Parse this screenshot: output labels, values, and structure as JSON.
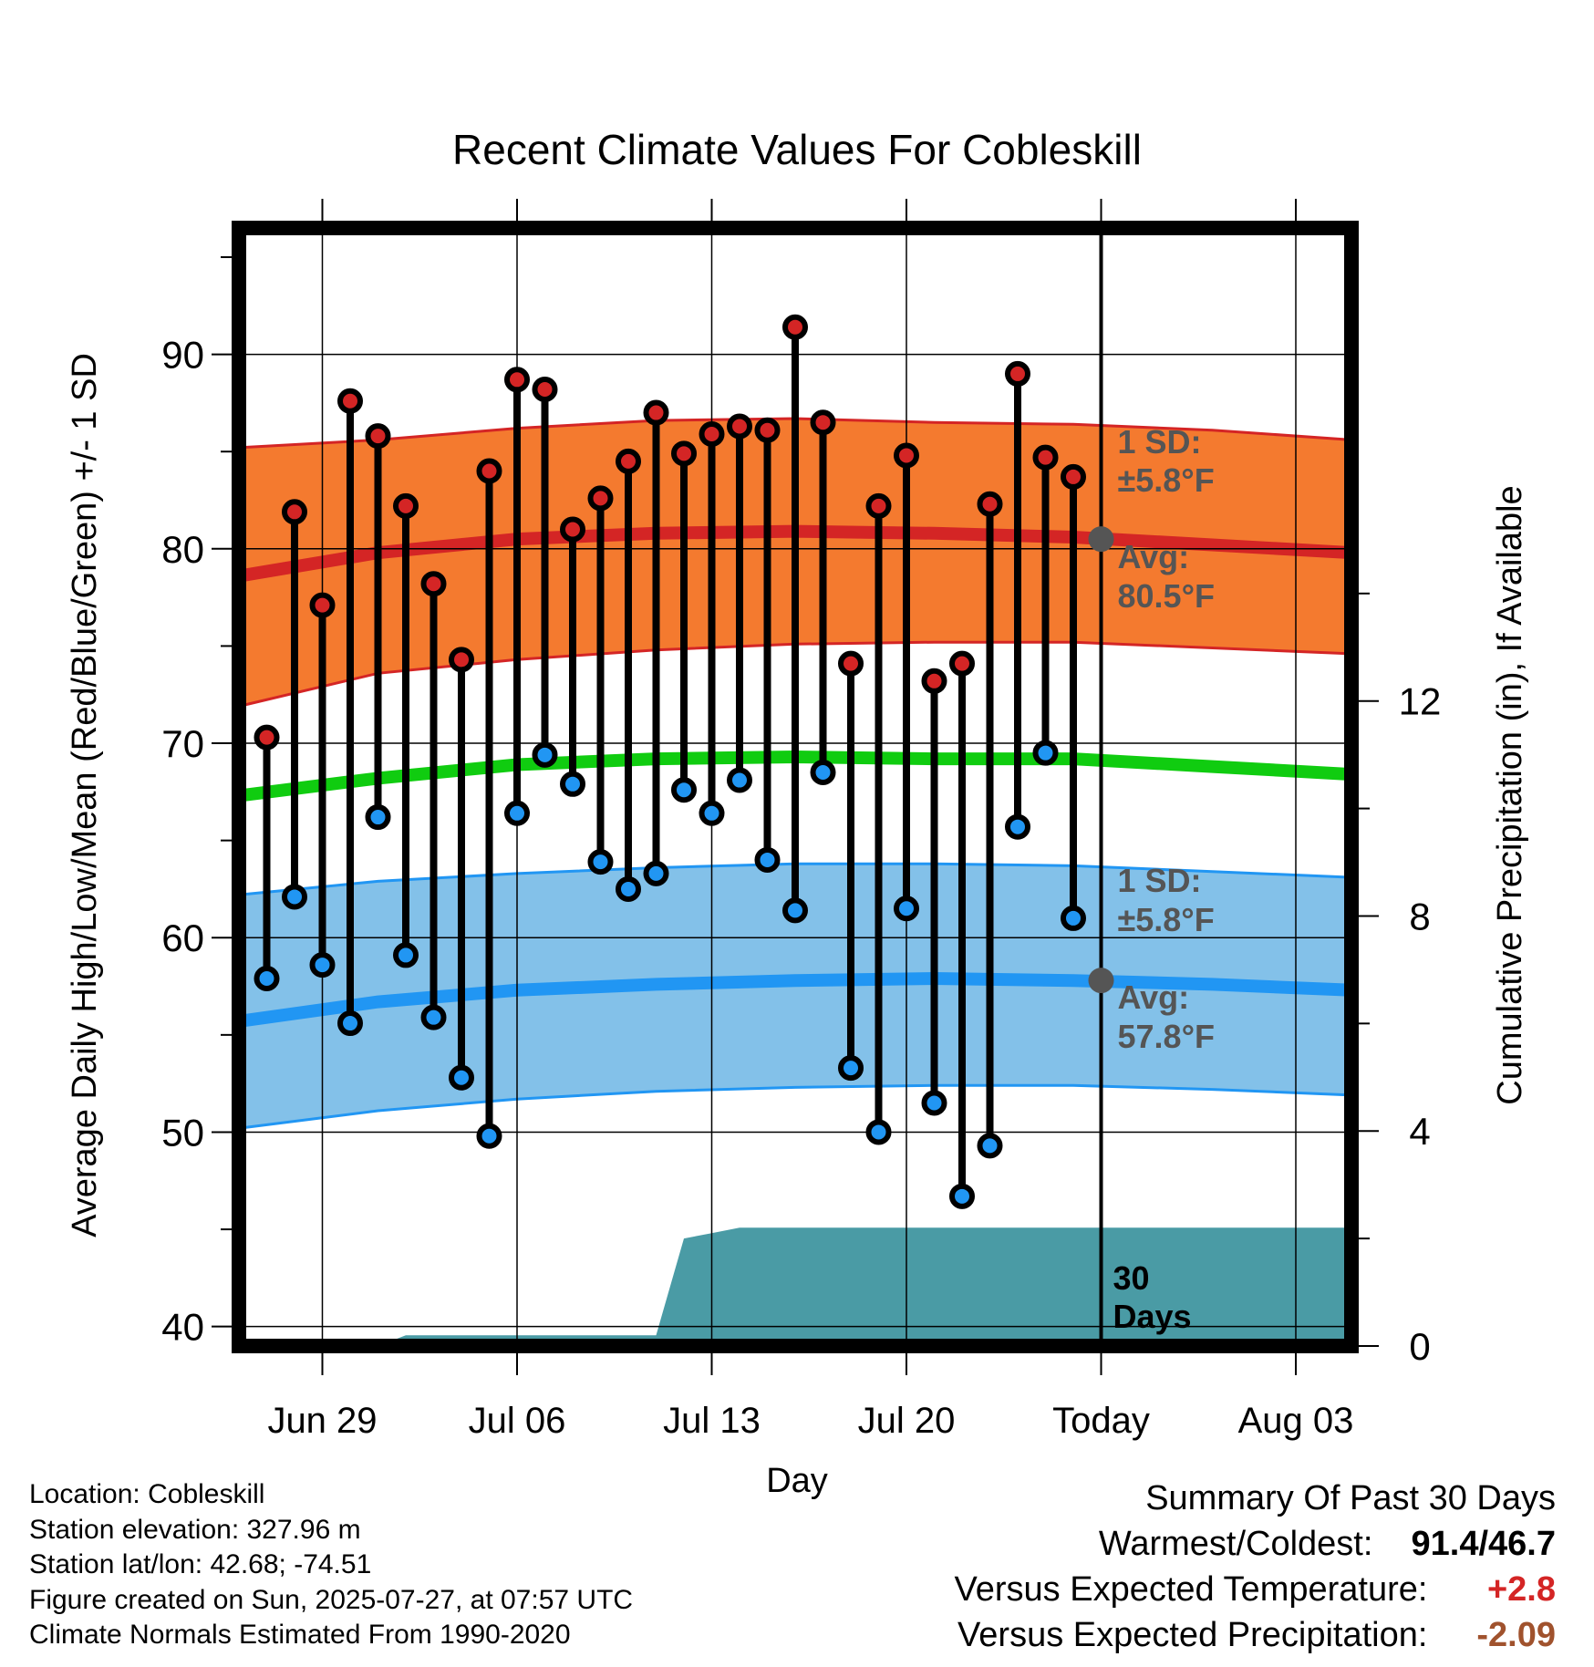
{
  "chart_data": {
    "type": "line",
    "title": "Recent Climate Values For Cobleskill",
    "xlabel": "Day",
    "ylabel": "Average Daily High/Low/Mean (Red/Blue/Green) +/- 1 SD",
    "ylabel_right": "Cumulative Precipitation (in), If Available",
    "x_ticks": [
      "Jun 29",
      "Jul 06",
      "Jul 13",
      "Jul 20",
      "Today",
      "Aug 03"
    ],
    "y_ticks": [
      "40",
      "50",
      "60",
      "70",
      "80",
      "90"
    ],
    "y_right_ticks": [
      "0",
      "4",
      "8",
      "12"
    ],
    "ylim": [
      39,
      96.5
    ],
    "ylim_right": [
      0,
      20.8
    ],
    "x_range": [
      "Jun 26",
      "Aug 05"
    ],
    "days": [
      "Jun 27",
      "Jun 28",
      "Jun 29",
      "Jun 30",
      "Jul 01",
      "Jul 02",
      "Jul 03",
      "Jul 04",
      "Jul 05",
      "Jul 06",
      "Jul 07",
      "Jul 08",
      "Jul 09",
      "Jul 10",
      "Jul 11",
      "Jul 12",
      "Jul 13",
      "Jul 14",
      "Jul 15",
      "Jul 16",
      "Jul 17",
      "Jul 18",
      "Jul 19",
      "Jul 20",
      "Jul 21",
      "Jul 22",
      "Jul 23",
      "Jul 24",
      "Jul 25",
      "Jul 26"
    ],
    "series": [
      {
        "name": "Observed High",
        "color": "#d42525",
        "values": [
          70.3,
          81.9,
          77.1,
          87.6,
          85.8,
          82.2,
          78.2,
          74.3,
          84.0,
          88.7,
          88.2,
          81.0,
          82.6,
          84.5,
          87.0,
          84.9,
          85.9,
          86.3,
          86.1,
          91.4,
          86.5,
          74.1,
          82.2,
          84.8,
          73.2,
          74.1,
          82.3,
          89.0,
          84.7,
          83.7
        ]
      },
      {
        "name": "Observed Low",
        "color": "#2196f3",
        "values": [
          57.9,
          62.1,
          58.6,
          55.6,
          66.2,
          59.1,
          55.9,
          52.8,
          49.8,
          66.4,
          69.4,
          67.9,
          63.9,
          62.5,
          63.3,
          67.6,
          66.4,
          68.1,
          64.0,
          61.4,
          68.5,
          53.3,
          50.0,
          61.5,
          51.5,
          46.7,
          49.3,
          65.7,
          69.5,
          61.0
        ]
      }
    ],
    "normals": {
      "x": [
        "Jun 26",
        "Jul 01",
        "Jul 06",
        "Jul 11",
        "Jul 16",
        "Jul 21",
        "Jul 26",
        "Jul 31",
        "Aug 05"
      ],
      "high_mean": [
        78.6,
        79.8,
        80.5,
        80.8,
        80.9,
        80.8,
        80.6,
        80.2,
        79.8
      ],
      "high_sd_upper": [
        85.2,
        85.6,
        86.2,
        86.6,
        86.7,
        86.5,
        86.4,
        86.1,
        85.6
      ],
      "high_sd_lower": [
        71.9,
        73.6,
        74.3,
        74.8,
        75.1,
        75.2,
        75.2,
        74.9,
        74.6
      ],
      "mean": [
        67.3,
        68.2,
        68.9,
        69.2,
        69.3,
        69.2,
        69.2,
        68.8,
        68.4
      ],
      "low_mean": [
        55.7,
        56.7,
        57.3,
        57.6,
        57.8,
        57.9,
        57.8,
        57.6,
        57.3
      ],
      "low_sd_upper": [
        62.2,
        62.9,
        63.3,
        63.6,
        63.8,
        63.8,
        63.7,
        63.4,
        63.1
      ],
      "low_sd_lower": [
        50.2,
        51.1,
        51.7,
        52.1,
        52.3,
        52.4,
        52.4,
        52.2,
        51.9
      ]
    },
    "precipitation": {
      "name": "Cumulative Precipitation",
      "color": "#4a9ba5",
      "x": [
        "Jun 26",
        "Jul 01",
        "Jul 02",
        "Jul 11",
        "Jul 12",
        "Jul 13",
        "Jul 14",
        "Aug 05"
      ],
      "values": [
        0,
        0,
        0.2,
        0.2,
        2.0,
        2.1,
        2.2,
        2.2
      ]
    },
    "today_line": "Jul 27",
    "grid": true,
    "annotations": {
      "high_sd": [
        "1 SD:",
        "±5.8°F"
      ],
      "high_avg": [
        "Avg:",
        "80.5°F"
      ],
      "low_sd": [
        "1 SD:",
        "±5.8°F"
      ],
      "low_avg": [
        "Avg:",
        "57.8°F"
      ],
      "period": [
        "30",
        "Days"
      ],
      "today_high_avg": 80.5,
      "today_low_avg": 57.8
    },
    "colors": {
      "high_band": "#f47a2f",
      "high_line": "#d42525",
      "mean_line": "#10cc10",
      "low_band": "#83c1e9",
      "low_line": "#2196f3",
      "annotation_text": "#555555"
    }
  },
  "info": {
    "location": "Location: Cobleskill",
    "elevation": "Station elevation: 327.96 m",
    "latlon": "Station lat/lon: 42.68; -74.51",
    "created": "Figure created on Sun, 2025-07-27, at 07:57 UTC",
    "normals": "Climate Normals Estimated From 1990-2020"
  },
  "summary": {
    "title": "Summary Of Past 30 Days",
    "warm_cold_label": "Warmest/Coldest:",
    "warmest": "91.4",
    "slash": "/",
    "coldest": "46.7",
    "temp_label": "Versus Expected Temperature:",
    "temp_value": "+2.8",
    "temp_color": "#d42525",
    "precip_label": "Versus Expected Precipitation:",
    "precip_value": "-2.09",
    "precip_color": "#a0522d"
  }
}
